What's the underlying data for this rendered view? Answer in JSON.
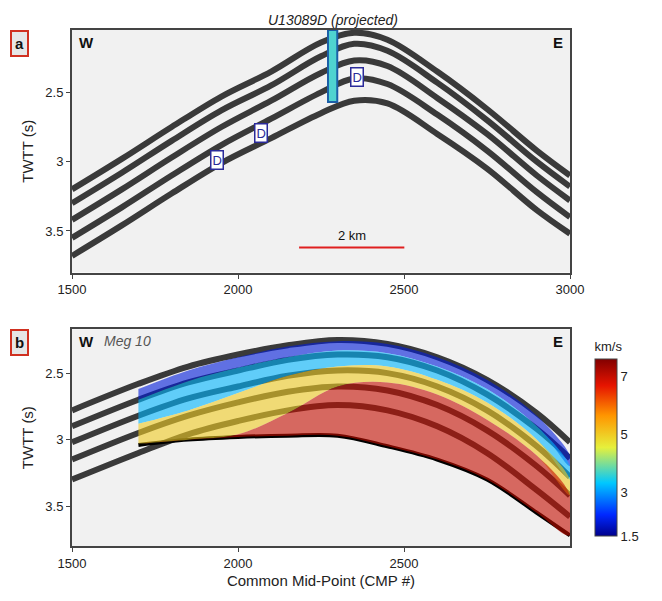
{
  "chart_data": [
    {
      "type": "line",
      "panel_label": "a",
      "y_label": "TWTT (s)",
      "west_label": "W",
      "east_label": "E",
      "xlim": [
        1500,
        3000
      ],
      "xticks": [
        1500,
        2000,
        2500,
        3000
      ],
      "ylim": [
        3.8,
        2.05
      ],
      "yticks": [
        2.5,
        3,
        3.5
      ],
      "color": "#3a3a3a",
      "x": [
        1500,
        1650,
        1800,
        1950,
        2100,
        2250,
        2350,
        2450,
        2600,
        2750,
        2900,
        3000
      ],
      "series": [
        {
          "values": [
            3.2,
            2.98,
            2.75,
            2.53,
            2.35,
            2.14,
            2.07,
            2.12,
            2.35,
            2.62,
            2.92,
            3.1
          ]
        },
        {
          "values": [
            3.3,
            3.08,
            2.85,
            2.63,
            2.45,
            2.24,
            2.15,
            2.2,
            2.43,
            2.7,
            3.0,
            3.18
          ]
        },
        {
          "values": [
            3.42,
            3.2,
            2.97,
            2.75,
            2.56,
            2.36,
            2.27,
            2.31,
            2.54,
            2.8,
            3.1,
            3.28
          ]
        },
        {
          "values": [
            3.55,
            3.33,
            3.1,
            2.88,
            2.69,
            2.5,
            2.4,
            2.44,
            2.66,
            2.92,
            3.22,
            3.4
          ]
        },
        {
          "values": [
            3.68,
            3.46,
            3.23,
            3.01,
            2.83,
            2.65,
            2.56,
            2.58,
            2.8,
            3.05,
            3.35,
            3.52
          ]
        }
      ],
      "well": {
        "label": "U13089D (projected)",
        "x": 2285,
        "top": 2.05,
        "bottom": 2.57
      },
      "markers": [
        {
          "text": "D",
          "x": 1938,
          "y": 2.99
        },
        {
          "text": "D",
          "x": 2068,
          "y": 2.79
        },
        {
          "text": "D",
          "x": 2357,
          "y": 2.39
        }
      ],
      "scale_bar": {
        "label": "2 km",
        "x": [
          2184,
          2501
        ],
        "y": 3.62
      }
    },
    {
      "type": "line",
      "panel_label": "b",
      "title": "Meg 10",
      "x_label": "Common Mid-Point (CMP #)",
      "y_label": "TWTT (s)",
      "west_label": "W",
      "east_label": "E",
      "xlim": [
        1500,
        3000
      ],
      "xticks": [
        1500,
        2000,
        2500
      ],
      "ylim": [
        3.8,
        2.17
      ],
      "yticks": [
        2.5,
        3,
        3.5
      ],
      "color": "#3a3a3a",
      "x": [
        1500,
        1700,
        1850,
        2000,
        2150,
        2300,
        2450,
        2600,
        2750,
        2900,
        3000
      ],
      "series": [
        {
          "values": [
            2.78,
            2.58,
            2.45,
            2.36,
            2.29,
            2.25,
            2.28,
            2.38,
            2.55,
            2.8,
            3.02
          ]
        },
        {
          "values": [
            2.9,
            2.7,
            2.57,
            2.48,
            2.4,
            2.36,
            2.38,
            2.48,
            2.66,
            2.92,
            3.14
          ]
        },
        {
          "values": [
            3.02,
            2.82,
            2.69,
            2.6,
            2.52,
            2.48,
            2.5,
            2.6,
            2.78,
            3.05,
            3.28
          ]
        },
        {
          "values": [
            3.15,
            2.95,
            2.82,
            2.72,
            2.64,
            2.6,
            2.63,
            2.74,
            2.93,
            3.2,
            3.42
          ]
        },
        {
          "values": [
            3.3,
            3.1,
            2.96,
            2.86,
            2.78,
            2.74,
            2.78,
            2.9,
            3.1,
            3.38,
            3.58
          ]
        },
        {
          "values": [
            null,
            3.04,
            3.0,
            2.98,
            2.97,
            2.97,
            3.05,
            3.15,
            3.3,
            3.55,
            3.72
          ],
          "color": "#000000"
        }
      ],
      "velocity_model": {
        "x": [
          1700,
          1850,
          2000,
          2150,
          2300,
          2450,
          2600,
          2750,
          2900,
          3000
        ],
        "boundaries": [
          [
            2.62,
            2.48,
            2.38,
            2.3,
            2.26,
            2.28,
            2.38,
            2.55,
            2.82,
            3.12
          ],
          [
            2.7,
            2.56,
            2.46,
            2.38,
            2.33,
            2.35,
            2.45,
            2.62,
            2.9,
            3.2
          ],
          [
            2.88,
            2.78,
            2.65,
            2.52,
            2.45,
            2.45,
            2.55,
            2.72,
            3.0,
            3.3
          ],
          [
            3.03,
            3.0,
            2.96,
            2.8,
            2.6,
            2.57,
            2.66,
            2.85,
            3.12,
            3.42
          ],
          [
            3.03,
            3.0,
            2.98,
            2.97,
            2.97,
            3.05,
            3.15,
            3.3,
            3.55,
            3.72
          ]
        ],
        "velocities": [
          2,
          3.2,
          5,
          7
        ]
      },
      "colorbar": {
        "title": "km/s",
        "range": [
          1.5,
          7.6
        ],
        "ticks": [
          1.5,
          3,
          5,
          7
        ]
      }
    }
  ]
}
